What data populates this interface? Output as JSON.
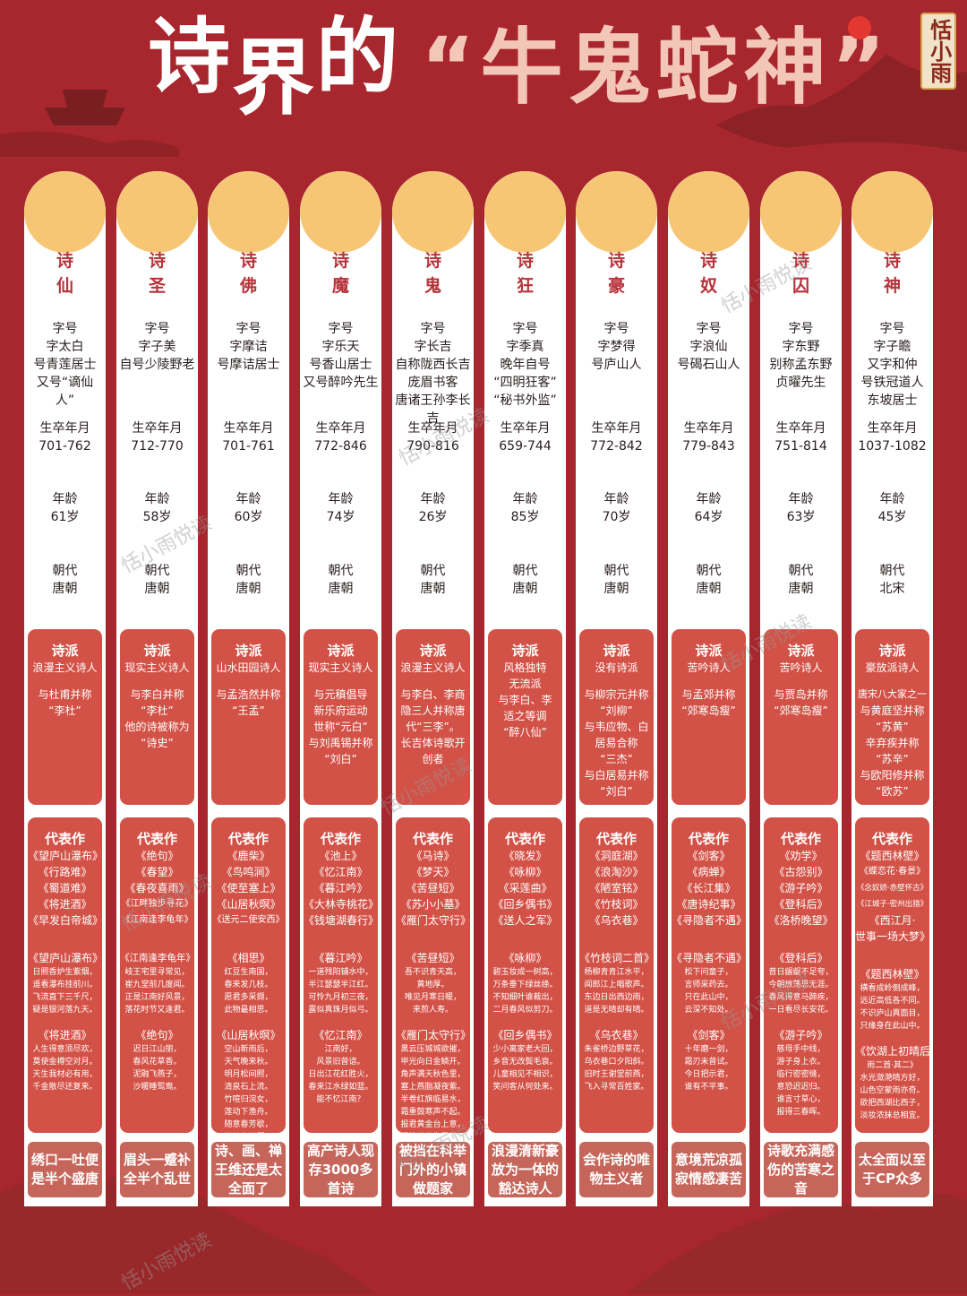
{
  "title": {
    "part1": "诗",
    "part2": "界",
    "part3": "的",
    "quote": "“牛鬼蛇神”",
    "seal": "恬小雨"
  },
  "watermark": "恬小雨悦读",
  "colors": {
    "background": "#a8262d",
    "circle": "#f7c675",
    "box": "#d35247",
    "bottom": "#c6665b",
    "accent": "#b6333a"
  },
  "labels": {
    "zihao": "字号",
    "shengzu": "生卒年月",
    "nianling": "年龄",
    "chaodai": "朝代"
  },
  "poets": [
    {
      "name1": "诗",
      "name2": "仙",
      "zihao": [
        "字太白",
        "号青莲居士",
        "又号“谪仙",
        "人”"
      ],
      "years": "701-762",
      "age": "61岁",
      "dynasty": "唐朝",
      "school": [
        "浪漫主义诗人",
        "",
        "与杜甫并称",
        "“李杜”"
      ],
      "works_title": [
        "代表作",
        "《望庐山瀑布》",
        "《行路难》",
        "《蜀道难》",
        "《将进酒》",
        "《早发白帝城》"
      ],
      "excerpt1": [
        "《望庐山瀑布》",
        "日照香炉生紫烟，",
        "遥看瀑布挂前川。",
        "飞流直下三千尺，",
        "疑是银河落九天。"
      ],
      "excerpt2": [
        "《将进酒》",
        "人生得意须尽欢，",
        "莫使金樽空对月。",
        "天生我材必有用，",
        "千金散尽还复来。"
      ],
      "summary": "绣口一吐便是半个盛唐"
    },
    {
      "name1": "诗",
      "name2": "圣",
      "zihao": [
        "字子美",
        "自号少陵野老"
      ],
      "years": "712-770",
      "age": "58岁",
      "dynasty": "唐朝",
      "school": [
        "现实主义诗人",
        "",
        "与李白并称",
        "“李杜”",
        "他的诗被称为",
        "“诗史”"
      ],
      "works_title": [
        "代表作",
        "《绝句》",
        "《春望》",
        "《春夜喜雨》",
        "《江畔独步寻花》",
        "《江南逢李龟年》"
      ],
      "excerpt1": [
        "《江南逢李龟年》",
        "岐王宅里寻常见，",
        "崔九堂前几度闻。",
        "正是江南好风景，",
        "落花时节又逢君。"
      ],
      "excerpt2": [
        "《绝句》",
        "迟日江山丽，",
        "春风花草香。",
        "泥融飞燕子，",
        "沙暖睡鸳鸯。"
      ],
      "summary": "眉头一蹙补全半个乱世"
    },
    {
      "name1": "诗",
      "name2": "佛",
      "zihao": [
        "字摩诘",
        "号摩诘居士"
      ],
      "years": "701-761",
      "age": "60岁",
      "dynasty": "唐朝",
      "school": [
        "山水田园诗人",
        "",
        "与孟浩然并称",
        "“王孟”"
      ],
      "works_title": [
        "代表作",
        "《鹿柴》",
        "《鸟鸣涧》",
        "《使至塞上》",
        "《山居秋暝》",
        "《送元二使安西》"
      ],
      "excerpt1": [
        "《相思》",
        "红豆生南国，",
        "春来发几枝。",
        "愿君多采撷，",
        "此物最相思。"
      ],
      "excerpt2": [
        "《山居秋暝》",
        "空山新雨后，",
        "天气晚来秋。",
        "明月松间照，",
        "清泉石上流。",
        "竹喧归浣女，",
        "莲动下渔舟。",
        "随意春芳歇，",
        "王孙自可留。"
      ],
      "summary": "诗、画、禅王维还是太全面了"
    },
    {
      "name1": "诗",
      "name2": "魔",
      "zihao": [
        "字乐天",
        "号香山居士",
        "又号醉吟先生"
      ],
      "years": "772-846",
      "age": "74岁",
      "dynasty": "唐朝",
      "school": [
        "现实主义诗人",
        "",
        "与元稹倡导",
        "新乐府运动",
        "世称“元白”",
        "与刘禹锡并称",
        "“刘白”"
      ],
      "works_title": [
        "代表作",
        "《池上》",
        "《忆江南》",
        "《暮江吟》",
        "《大林寺桃花》",
        "《钱塘湖春行》"
      ],
      "excerpt1": [
        "《暮江吟》",
        "一道残阳铺水中，",
        "半江瑟瑟半江红。",
        "可怜九月初三夜，",
        "露似真珠月似弓。"
      ],
      "excerpt2": [
        "《忆江南》",
        "江南好，",
        "风景旧曾谙。",
        "日出江花红胜火，",
        "春来江水绿如蓝。",
        "能不忆江南？"
      ],
      "summary": "高产诗人现存3000多首诗"
    },
    {
      "name1": "诗",
      "name2": "鬼",
      "zihao": [
        "字长吉",
        "自称陇西长吉",
        "庞眉书客",
        "唐诸王孙李长吉"
      ],
      "years": "790-816",
      "age": "26岁",
      "dynasty": "唐朝",
      "school": [
        "浪漫主义诗人",
        "",
        "与李白、李商",
        "隐三人并称唐",
        "代“三李”。",
        "长吉体诗歌开",
        "创者"
      ],
      "works_title": [
        "代表作",
        "《马诗》",
        "《梦天》",
        "《苦昼短》",
        "《苏小小墓》",
        "《雁门太守行》"
      ],
      "excerpt1": [
        "《苦昼短》",
        "吾不识青天高，",
        "黄地厚。",
        "唯见月寒日暖，",
        "来煎人寿。"
      ],
      "excerpt2": [
        "《雁门太守行》",
        "黑云压城城欲摧，",
        "甲光向日金鳞开。",
        "角声满天秋色里，",
        "塞上燕脂凝夜紫。",
        "半卷红旗临易水，",
        "霜重鼓寒声不起。",
        "报君黄金台上意，",
        "提携玉龙为君死。"
      ],
      "summary": "被挡在科举门外的小镇做题家"
    },
    {
      "name1": "诗",
      "name2": "狂",
      "zihao": [
        "字季真",
        "晚年自号",
        "“四明狂客”",
        "“秘书外监”"
      ],
      "years": "659-744",
      "age": "85岁",
      "dynasty": "唐朝",
      "school": [
        "风格独特",
        "无流派",
        "与李白、李",
        "适之等调",
        "“醉八仙”"
      ],
      "works_title": [
        "代表作",
        "《晓发》",
        "《咏柳》",
        "《采莲曲》",
        "《回乡偶书》",
        "《送人之军》"
      ],
      "excerpt1": [
        "《咏柳》",
        "碧玉妆成一树高，",
        "万条垂下绿丝绦。",
        "不知细叶谁裁出，",
        "二月春风似剪刀。"
      ],
      "excerpt2": [
        "《回乡偶书》",
        "少小离家老大回，",
        "乡音无改鬓毛衰。",
        "儿童相见不相识，",
        "笑问客从何处来。"
      ],
      "summary": "浪漫清新豪放为一体的豁达诗人"
    },
    {
      "name1": "诗",
      "name2": "豪",
      "zihao": [
        "字梦得",
        "号庐山人"
      ],
      "years": "772-842",
      "age": "70岁",
      "dynasty": "唐朝",
      "school": [
        "没有诗派",
        "",
        "与柳宗元并称",
        "“刘柳”",
        "与韦应物、白",
        "居易合称",
        "“三杰”",
        "与白居易并称",
        "“刘白”"
      ],
      "works_title": [
        "代表作",
        "《洞庭湖》",
        "《浪淘沙》",
        "《陋室铭》",
        "《竹枝词》",
        "《乌衣巷》"
      ],
      "excerpt1": [
        "《竹枝词二首》",
        "杨柳青青江水平，",
        "闻郎江上唱歌声。",
        "东边日出西边雨，",
        "道是无晴却有晴。"
      ],
      "excerpt2": [
        "《乌衣巷》",
        "朱雀桥边野草花，",
        "乌衣巷口夕阳斜。",
        "旧时王谢堂前燕，",
        "飞入寻常百姓家。"
      ],
      "summary": "会作诗的唯物主义者"
    },
    {
      "name1": "诗",
      "name2": "奴",
      "zihao": [
        "字浪仙",
        "号碣石山人"
      ],
      "years": "779-843",
      "age": "64岁",
      "dynasty": "唐朝",
      "school": [
        "苦吟诗人",
        "",
        "与孟郊并称",
        "“郊寒岛瘦”"
      ],
      "works_title": [
        "代表作",
        "《剑客》",
        "《病蝉》",
        "《长江集》",
        "《唐诗纪事》",
        "《寻隐者不遇》"
      ],
      "excerpt1": [
        "《寻隐者不遇》",
        "松下问童子，",
        "言师采药去。",
        "只在此山中，",
        "云深不知处。"
      ],
      "excerpt2": [
        "《剑客》",
        "十年磨一剑，",
        "霜刃未曾试。",
        "今日把示君，",
        "谁有不平事。"
      ],
      "summary": "意境荒凉孤寂情感凄苦"
    },
    {
      "name1": "诗",
      "name2": "囚",
      "zihao": [
        "字东野",
        "别称孟东野",
        "贞曜先生"
      ],
      "years": "751-814",
      "age": "63岁",
      "dynasty": "唐朝",
      "school": [
        "苦吟诗人",
        "",
        "与贾岛并称",
        "“郊寒岛瘦”"
      ],
      "works_title": [
        "代表作",
        "《劝学》",
        "《古怨别》",
        "《游子吟》",
        "《登科后》",
        "《洛桥晚望》"
      ],
      "excerpt1": [
        "《登科后》",
        "昔日龌龊不足夸，",
        "今朝放荡思无涯。",
        "春风得意马蹄疾，",
        "一日看尽长安花。"
      ],
      "excerpt2": [
        "《游子吟》",
        "慈母手中线，",
        "游子身上衣。",
        "临行密密缝，",
        "意恐迟迟归。",
        "谁言寸草心，",
        "报得三春晖。"
      ],
      "summary": "诗歌充满感伤的苦寒之音"
    },
    {
      "name1": "诗",
      "name2": "神",
      "zihao": [
        "字子瞻",
        "又字和仲",
        "号铁冠道人",
        "东坡居士"
      ],
      "years": "1037-1082",
      "age": "45岁",
      "dynasty": "北宋",
      "school": [
        "豪放派诗人",
        "",
        "唐宋八大家之一",
        "与黄庭坚并称",
        "“苏黄”",
        "辛弃疾并称",
        "“苏辛”",
        "与欧阳修并称",
        "“欧苏”"
      ],
      "works_title": [
        "代表作",
        "《题西林壁》",
        "《蝶恋花·春景》",
        "《念奴娇·赤壁怀古》",
        "《江城子·密州出猎》",
        "《西江月·",
        "世事一场大梦》"
      ],
      "excerpt1": [
        "《题西林壁》",
        "横看成岭侧成峰，",
        "远近高低各不同。",
        "不识庐山真面目，",
        "只缘身在此山中。"
      ],
      "excerpt2": [
        "《饮湖上初晴后",
        "雨二首·其二》",
        "水光潋滟晴方好，",
        "山色空蒙雨亦奇。",
        "欲把西湖比西子，",
        "淡妆浓抹总相宜。"
      ],
      "summary": "太全面以至于CP众多"
    }
  ]
}
